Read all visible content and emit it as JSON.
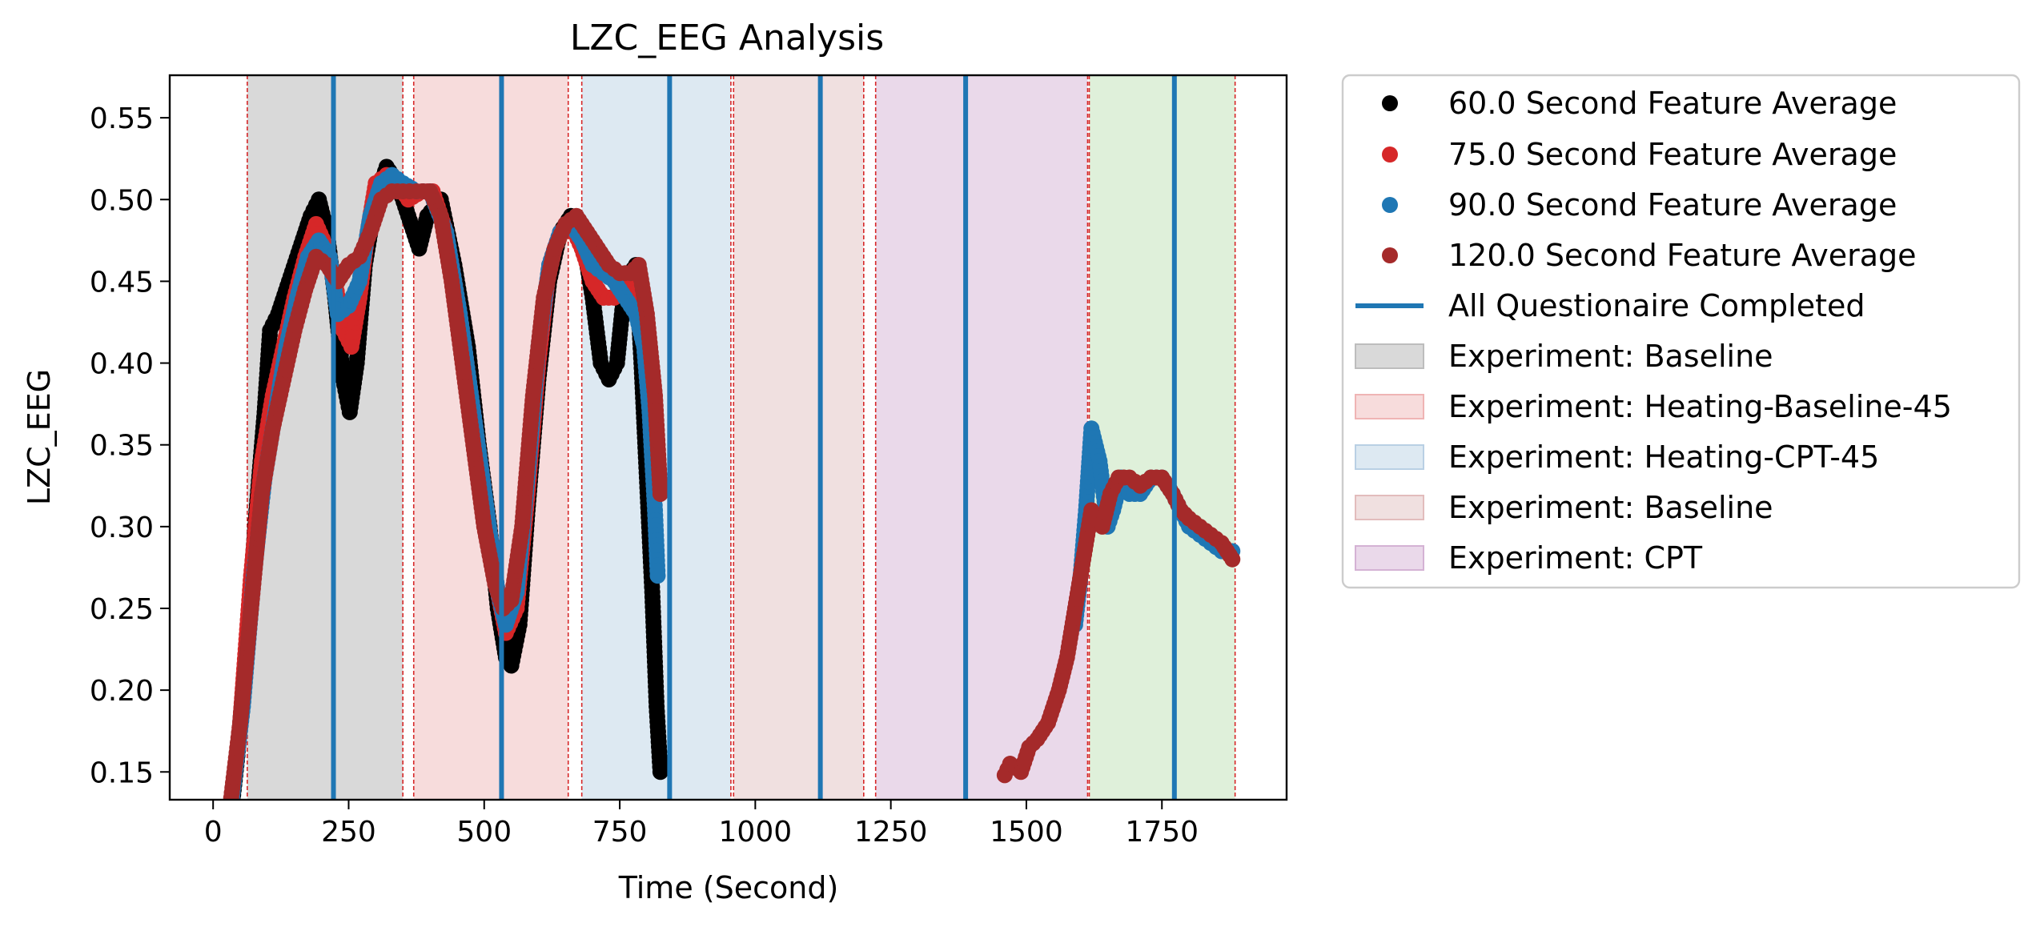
{
  "chart_data": {
    "type": "scatter",
    "title": "LZC_EEG Analysis",
    "xlabel": "Time (Second)",
    "ylabel": "LZC_EEG",
    "xlim": [
      -80,
      1980
    ],
    "ylim": [
      0.133,
      0.576
    ],
    "xticks": [
      0,
      250,
      500,
      750,
      1000,
      1250,
      1500,
      1750
    ],
    "yticks": [
      0.15,
      0.2,
      0.25,
      0.3,
      0.35,
      0.4,
      0.45,
      0.5,
      0.55
    ],
    "ytick_labels": [
      "0.15",
      "0.20",
      "0.25",
      "0.30",
      "0.35",
      "0.40",
      "0.45",
      "0.50",
      "0.55"
    ],
    "grid": false,
    "legend_position": "outside-right",
    "shaded_regions": [
      {
        "label": "Experiment: Baseline",
        "start": 63,
        "end": 350,
        "color": "#d9d9d9"
      },
      {
        "label": "Experiment: Heating-Baseline-45",
        "start": 370,
        "end": 655,
        "color": "#f7dcdc"
      },
      {
        "label": "Experiment: Heating-CPT-45",
        "start": 680,
        "end": 955,
        "color": "#dde9f2"
      },
      {
        "label": "Experiment: Baseline",
        "start": 960,
        "end": 1200,
        "color": "#f0e0e0"
      },
      {
        "label": "Experiment: CPT",
        "start": 1222,
        "end": 1613,
        "color": "#ead9ea"
      },
      {
        "label": "",
        "start": 1616,
        "end": 1885,
        "color": "#dff0da"
      }
    ],
    "boundary_lines": [
      63,
      350,
      370,
      655,
      680,
      955,
      960,
      1200,
      1222,
      1613,
      1616,
      1885
    ],
    "questionnaire_completed": {
      "label": "All Questionaire Completed",
      "color": "#1f77b4",
      "times": [
        222,
        532,
        842,
        1120,
        1388,
        1773
      ]
    },
    "series": [
      {
        "name": "60.0 Second Feature Average",
        "color": "#000000",
        "points": [
          [
            30,
            0.115
          ],
          [
            45,
            0.16
          ],
          [
            60,
            0.22
          ],
          [
            80,
            0.31
          ],
          [
            95,
            0.37
          ],
          [
            105,
            0.42
          ],
          [
            120,
            0.43
          ],
          [
            140,
            0.45
          ],
          [
            160,
            0.47
          ],
          [
            180,
            0.49
          ],
          [
            195,
            0.5
          ],
          [
            210,
            0.48
          ],
          [
            225,
            0.44
          ],
          [
            240,
            0.39
          ],
          [
            252,
            0.37
          ],
          [
            265,
            0.4
          ],
          [
            280,
            0.46
          ],
          [
            300,
            0.5
          ],
          [
            320,
            0.52
          ],
          [
            340,
            0.51
          ],
          [
            360,
            0.49
          ],
          [
            380,
            0.47
          ],
          [
            395,
            0.49
          ],
          [
            420,
            0.5
          ],
          [
            445,
            0.46
          ],
          [
            470,
            0.41
          ],
          [
            490,
            0.35
          ],
          [
            510,
            0.3
          ],
          [
            525,
            0.25
          ],
          [
            540,
            0.22
          ],
          [
            550,
            0.215
          ],
          [
            565,
            0.24
          ],
          [
            580,
            0.31
          ],
          [
            600,
            0.39
          ],
          [
            620,
            0.45
          ],
          [
            640,
            0.48
          ],
          [
            660,
            0.49
          ],
          [
            680,
            0.48
          ],
          [
            700,
            0.44
          ],
          [
            715,
            0.4
          ],
          [
            730,
            0.39
          ],
          [
            745,
            0.4
          ],
          [
            760,
            0.45
          ],
          [
            780,
            0.46
          ],
          [
            790,
            0.4
          ],
          [
            800,
            0.33
          ],
          [
            810,
            0.26
          ],
          [
            818,
            0.19
          ],
          [
            825,
            0.15
          ]
        ]
      },
      {
        "name": "75.0 Second Feature Average",
        "color": "#d62728",
        "points": [
          [
            30,
            0.12
          ],
          [
            50,
            0.18
          ],
          [
            70,
            0.27
          ],
          [
            90,
            0.34
          ],
          [
            110,
            0.38
          ],
          [
            130,
            0.41
          ],
          [
            150,
            0.44
          ],
          [
            170,
            0.465
          ],
          [
            190,
            0.485
          ],
          [
            210,
            0.47
          ],
          [
            225,
            0.45
          ],
          [
            240,
            0.42
          ],
          [
            255,
            0.41
          ],
          [
            270,
            0.44
          ],
          [
            285,
            0.48
          ],
          [
            300,
            0.51
          ],
          [
            320,
            0.515
          ],
          [
            340,
            0.51
          ],
          [
            360,
            0.5
          ],
          [
            385,
            0.505
          ],
          [
            405,
            0.505
          ],
          [
            430,
            0.48
          ],
          [
            455,
            0.43
          ],
          [
            480,
            0.37
          ],
          [
            505,
            0.31
          ],
          [
            525,
            0.26
          ],
          [
            540,
            0.235
          ],
          [
            560,
            0.25
          ],
          [
            580,
            0.32
          ],
          [
            600,
            0.4
          ],
          [
            620,
            0.46
          ],
          [
            640,
            0.48
          ],
          [
            660,
            0.485
          ],
          [
            680,
            0.47
          ],
          [
            700,
            0.45
          ],
          [
            720,
            0.44
          ],
          [
            740,
            0.44
          ],
          [
            760,
            0.45
          ],
          [
            780,
            0.44
          ],
          [
            795,
            0.42
          ],
          [
            810,
            0.37
          ],
          [
            820,
            0.32
          ]
        ]
      },
      {
        "name": "90.0 Second Feature Average",
        "color": "#1f77b4",
        "points": [
          [
            30,
            0.12
          ],
          [
            55,
            0.19
          ],
          [
            75,
            0.27
          ],
          [
            95,
            0.33
          ],
          [
            115,
            0.37
          ],
          [
            135,
            0.41
          ],
          [
            155,
            0.44
          ],
          [
            175,
            0.465
          ],
          [
            195,
            0.475
          ],
          [
            215,
            0.465
          ],
          [
            230,
            0.43
          ],
          [
            250,
            0.435
          ],
          [
            270,
            0.45
          ],
          [
            290,
            0.49
          ],
          [
            310,
            0.51
          ],
          [
            330,
            0.515
          ],
          [
            350,
            0.51
          ],
          [
            375,
            0.505
          ],
          [
            400,
            0.505
          ],
          [
            430,
            0.48
          ],
          [
            455,
            0.43
          ],
          [
            480,
            0.37
          ],
          [
            505,
            0.31
          ],
          [
            525,
            0.26
          ],
          [
            540,
            0.24
          ],
          [
            560,
            0.26
          ],
          [
            580,
            0.33
          ],
          [
            600,
            0.41
          ],
          [
            620,
            0.46
          ],
          [
            640,
            0.48
          ],
          [
            660,
            0.485
          ],
          [
            680,
            0.475
          ],
          [
            700,
            0.46
          ],
          [
            720,
            0.455
          ],
          [
            740,
            0.45
          ],
          [
            760,
            0.44
          ],
          [
            780,
            0.43
          ],
          [
            795,
            0.41
          ],
          [
            805,
            0.37
          ],
          [
            815,
            0.31
          ],
          [
            820,
            0.27
          ],
          [
            1590,
            0.24
          ],
          [
            1600,
            0.27
          ],
          [
            1610,
            0.31
          ],
          [
            1620,
            0.36
          ],
          [
            1635,
            0.34
          ],
          [
            1650,
            0.3
          ],
          [
            1660,
            0.31
          ],
          [
            1675,
            0.33
          ],
          [
            1690,
            0.32
          ],
          [
            1710,
            0.32
          ],
          [
            1730,
            0.33
          ],
          [
            1750,
            0.33
          ],
          [
            1770,
            0.32
          ],
          [
            1785,
            0.31
          ],
          [
            1800,
            0.3
          ],
          [
            1820,
            0.295
          ],
          [
            1840,
            0.29
          ],
          [
            1860,
            0.285
          ],
          [
            1880,
            0.285
          ]
        ]
      },
      {
        "name": "120.0 Second Feature Average",
        "color": "#a52a2a",
        "points": [
          [
            30,
            0.125
          ],
          [
            50,
            0.18
          ],
          [
            70,
            0.25
          ],
          [
            90,
            0.32
          ],
          [
            110,
            0.36
          ],
          [
            130,
            0.39
          ],
          [
            150,
            0.42
          ],
          [
            170,
            0.445
          ],
          [
            190,
            0.465
          ],
          [
            210,
            0.46
          ],
          [
            230,
            0.45
          ],
          [
            250,
            0.46
          ],
          [
            270,
            0.465
          ],
          [
            290,
            0.48
          ],
          [
            310,
            0.5
          ],
          [
            330,
            0.505
          ],
          [
            350,
            0.505
          ],
          [
            375,
            0.505
          ],
          [
            400,
            0.505
          ],
          [
            420,
            0.49
          ],
          [
            440,
            0.45
          ],
          [
            460,
            0.4
          ],
          [
            480,
            0.35
          ],
          [
            500,
            0.3
          ],
          [
            520,
            0.265
          ],
          [
            535,
            0.25
          ],
          [
            550,
            0.255
          ],
          [
            570,
            0.3
          ],
          [
            590,
            0.38
          ],
          [
            610,
            0.44
          ],
          [
            630,
            0.47
          ],
          [
            650,
            0.485
          ],
          [
            670,
            0.49
          ],
          [
            690,
            0.48
          ],
          [
            710,
            0.47
          ],
          [
            730,
            0.46
          ],
          [
            750,
            0.455
          ],
          [
            770,
            0.455
          ],
          [
            785,
            0.46
          ],
          [
            800,
            0.43
          ],
          [
            815,
            0.38
          ],
          [
            825,
            0.32
          ],
          [
            1460,
            0.148
          ],
          [
            1470,
            0.155
          ],
          [
            1490,
            0.15
          ],
          [
            1505,
            0.165
          ],
          [
            1520,
            0.17
          ],
          [
            1540,
            0.18
          ],
          [
            1560,
            0.2
          ],
          [
            1575,
            0.22
          ],
          [
            1590,
            0.25
          ],
          [
            1605,
            0.28
          ],
          [
            1620,
            0.31
          ],
          [
            1640,
            0.3
          ],
          [
            1655,
            0.32
          ],
          [
            1670,
            0.33
          ],
          [
            1690,
            0.33
          ],
          [
            1710,
            0.325
          ],
          [
            1730,
            0.33
          ],
          [
            1750,
            0.33
          ],
          [
            1770,
            0.32
          ],
          [
            1785,
            0.31
          ],
          [
            1800,
            0.305
          ],
          [
            1820,
            0.3
          ],
          [
            1840,
            0.295
          ],
          [
            1860,
            0.29
          ],
          [
            1880,
            0.28
          ]
        ]
      }
    ]
  }
}
